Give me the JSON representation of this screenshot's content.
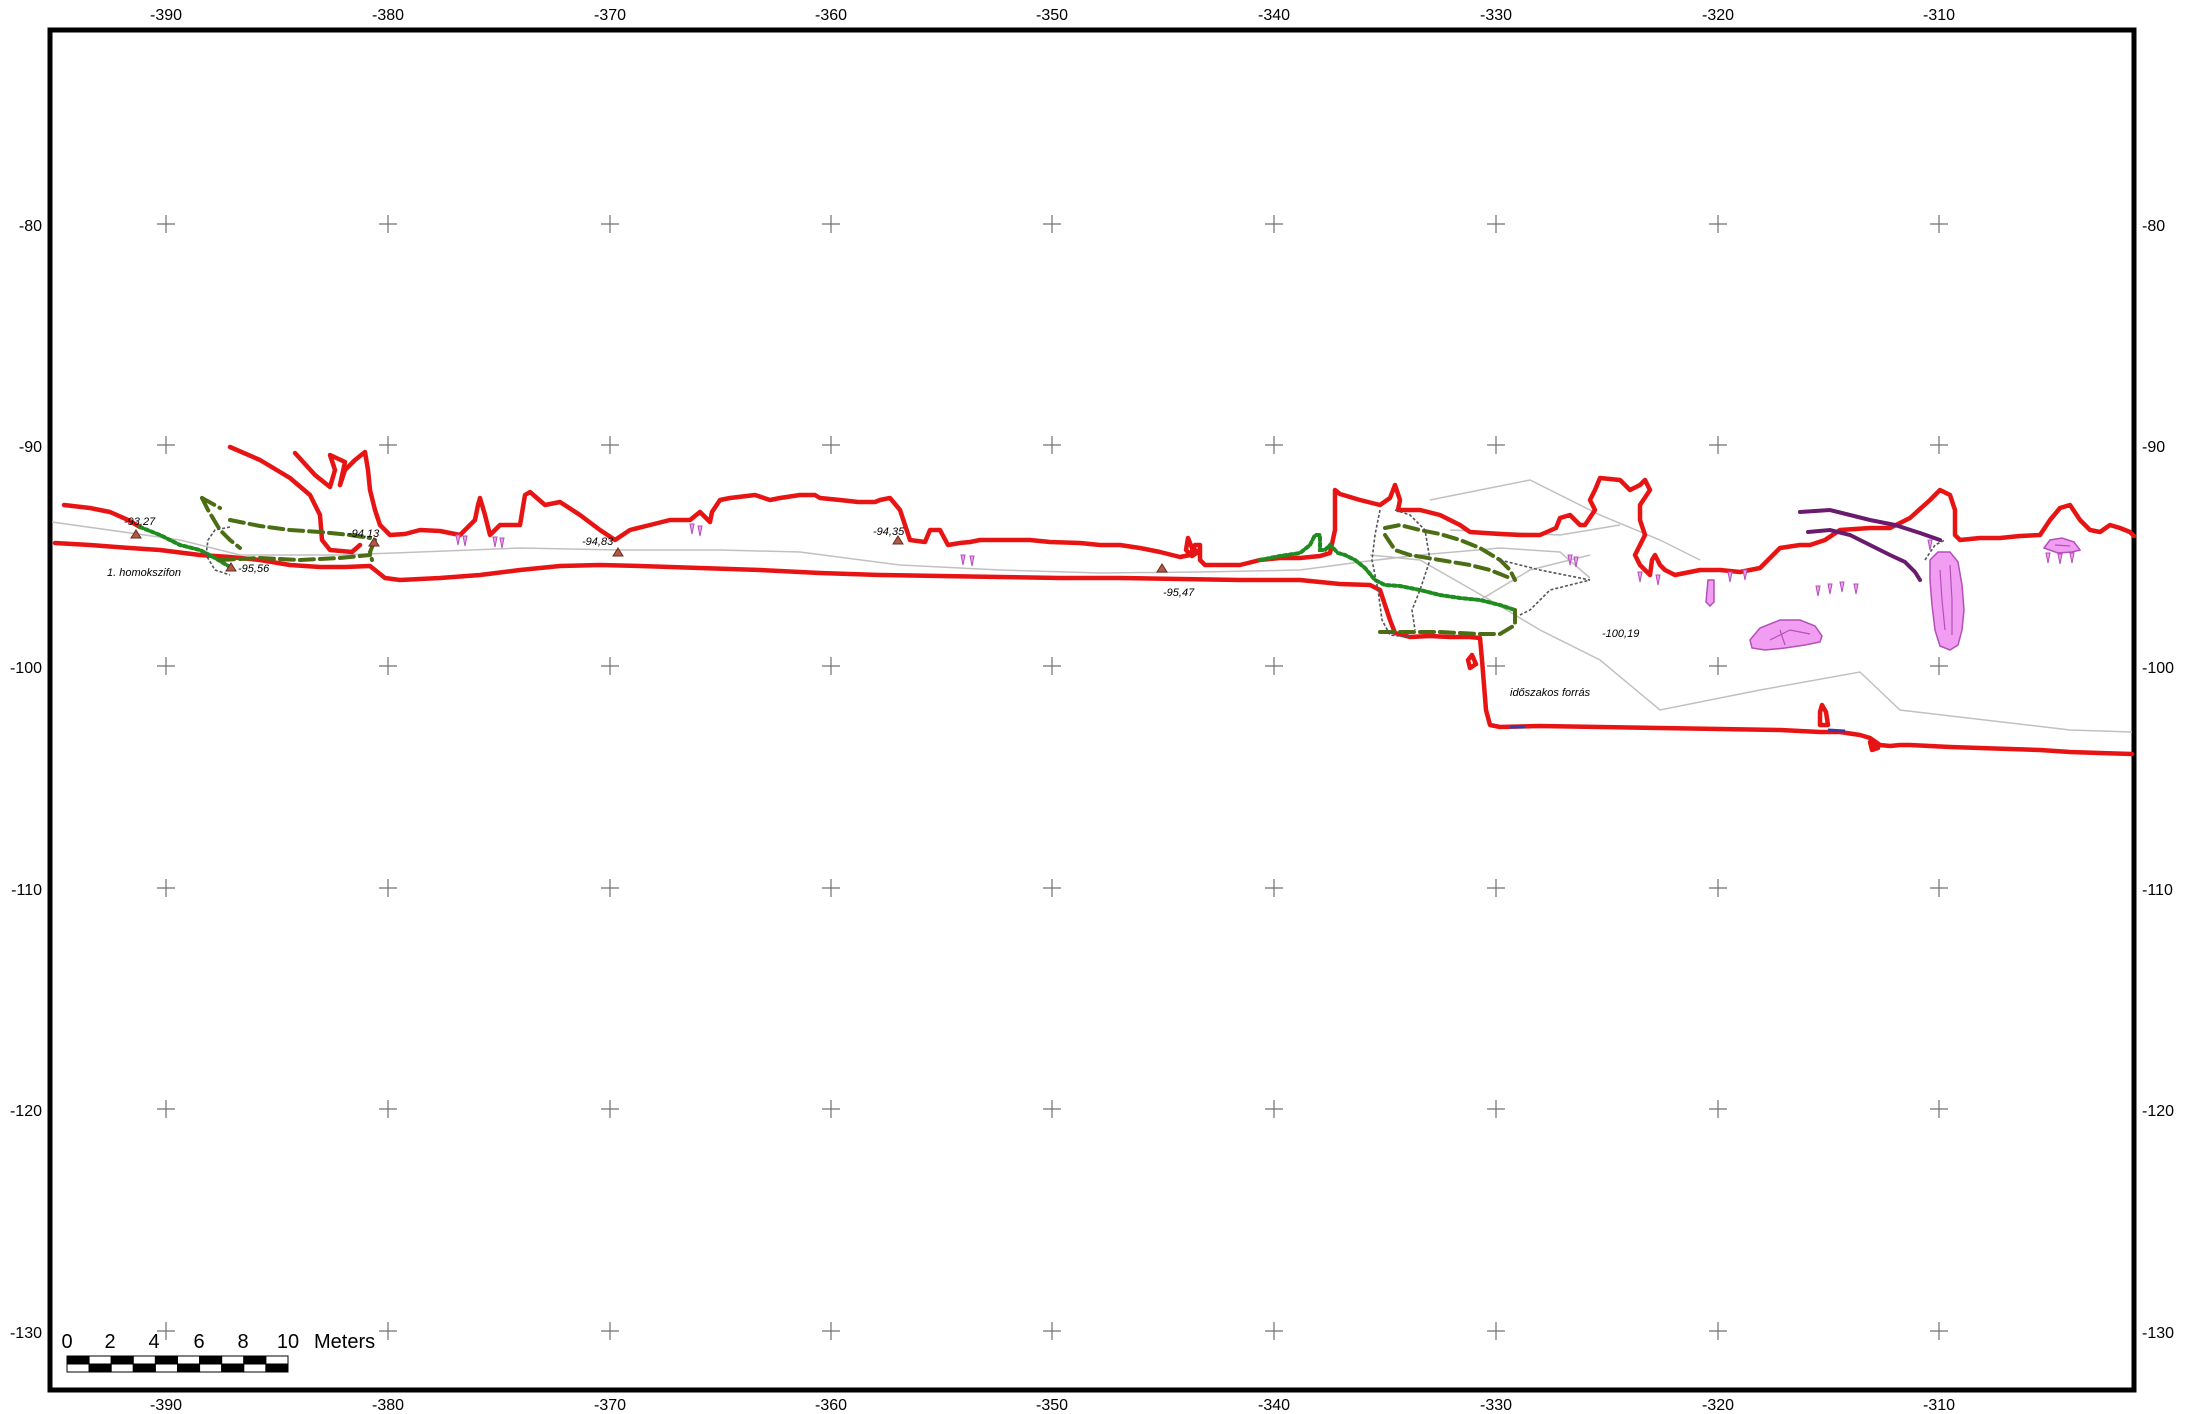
{
  "x_ticks": [
    "-390",
    "-380",
    "-370",
    "-360",
    "-350",
    "-340",
    "-330",
    "-320",
    "-310"
  ],
  "y_ticks": [
    "-80",
    "-90",
    "-100",
    "-110",
    "-120",
    "-130"
  ],
  "elevation_labels": [
    "-93,27",
    "-95,56",
    "-94,13",
    "-94,83",
    "-94,35",
    "-95,47",
    "-100,19"
  ],
  "place_labels": [
    "1. homokszifon",
    "időszakos forrás"
  ],
  "scale_bar": {
    "numbers": [
      "0",
      "2",
      "4",
      "6",
      "8",
      "10"
    ],
    "unit": "Meters"
  },
  "colors": {
    "wall": "#e81414",
    "water_green": "#1e8c1e",
    "water_olive": "#4b6e14",
    "purple_line": "#6a1b6e",
    "formation_fill": "#f19ef2",
    "formation_stroke": "#b44fb8",
    "survey_line": "#c0c0c0",
    "grid": "#707070",
    "frame": "#000000"
  }
}
